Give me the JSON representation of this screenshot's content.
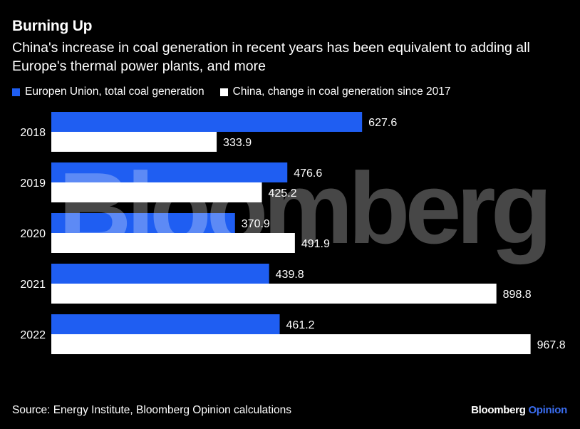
{
  "header": {
    "title": "Burning Up",
    "subtitle": "China's increase in coal generation in recent years has been equivalent to adding all Europe's thermal power plants, and more"
  },
  "footer": {
    "source": "Source: Energy Institute, Bloomberg Opinion calculations",
    "brand_main": "Bloomberg",
    "brand_sub": "Opinion"
  },
  "watermark": "Bloomberg",
  "colors": {
    "background": "#000000",
    "eu": "#1f5ef2",
    "china": "#ffffff",
    "text": "#ffffff",
    "brand_accent": "#3a6df0"
  },
  "chart_data": {
    "type": "bar",
    "orientation": "horizontal",
    "title": "Burning Up",
    "categories": [
      "2018",
      "2019",
      "2020",
      "2021",
      "2022"
    ],
    "series": [
      {
        "name": "Europen Union, total coal generation",
        "values": [
          627.6,
          476.6,
          370.9,
          439.8,
          461.2
        ]
      },
      {
        "name": "China, change in coal generation since 2017",
        "values": [
          333.9,
          425.2,
          491.9,
          898.8,
          967.8
        ]
      }
    ],
    "xlim": [
      0,
      1000
    ],
    "grid": false,
    "legend": "top-left",
    "data_labels": true
  }
}
